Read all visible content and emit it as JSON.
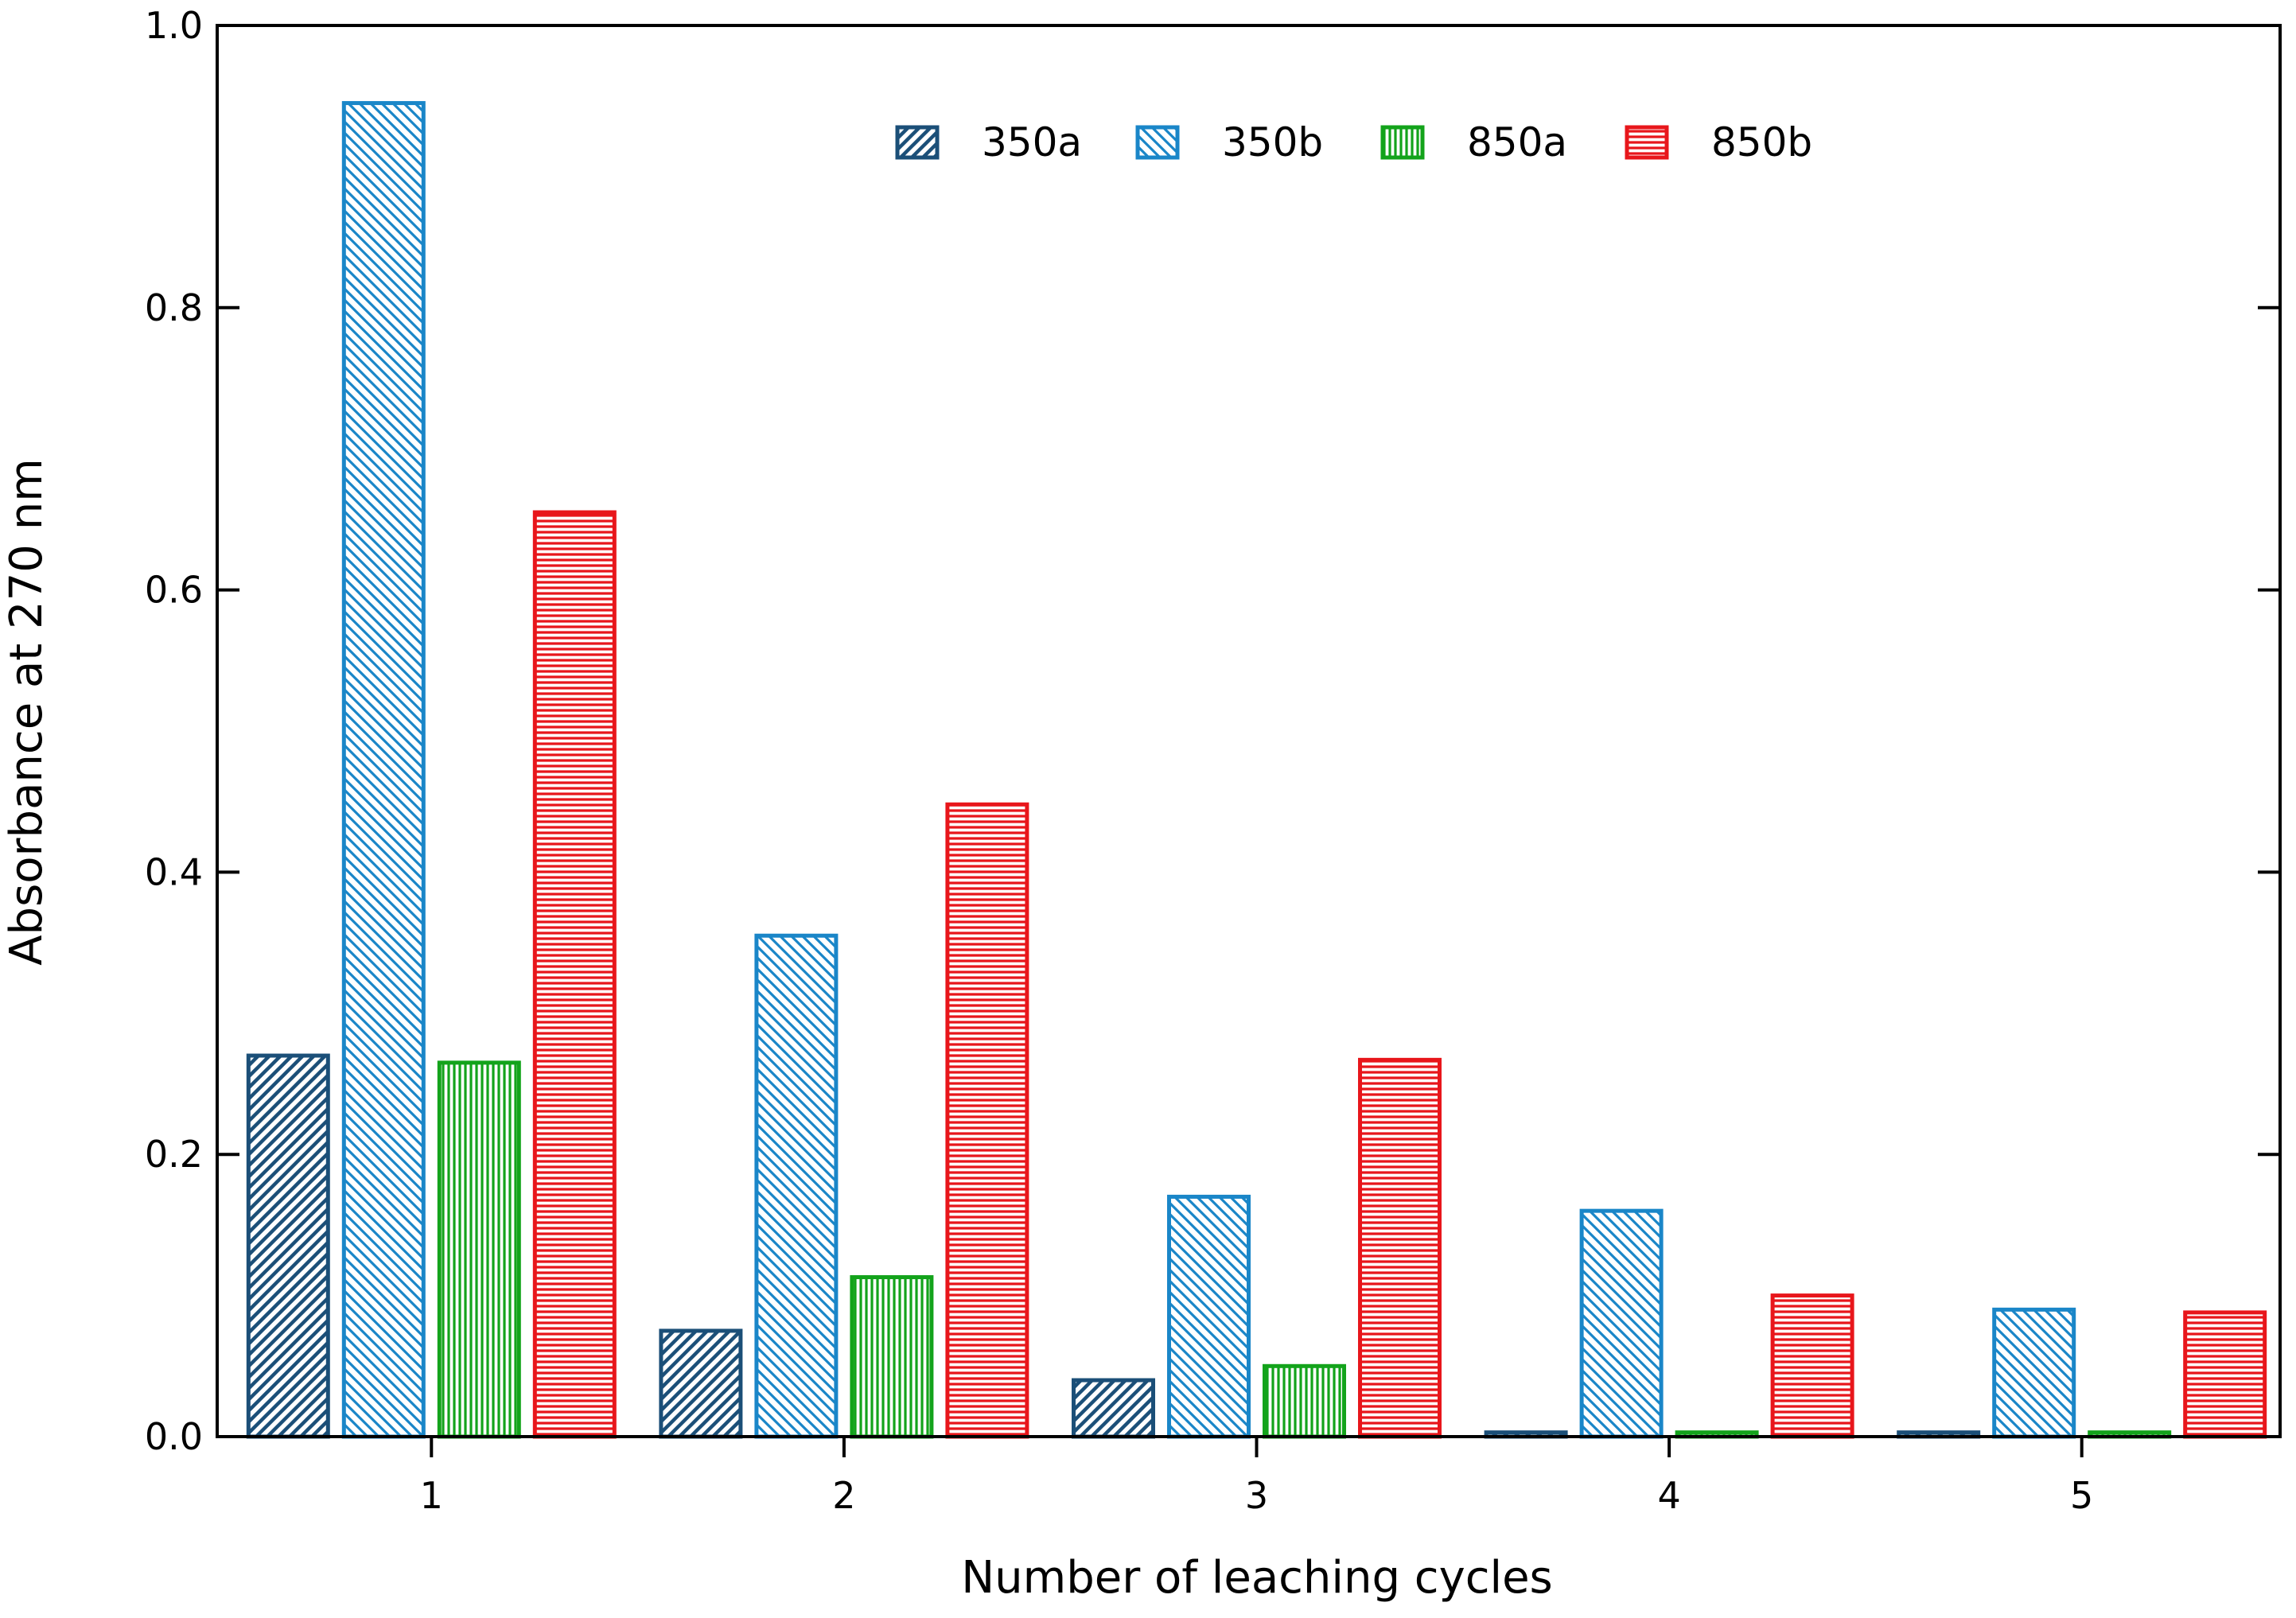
{
  "chart_data": {
    "type": "bar",
    "xlabel": "Number of leaching cycles",
    "ylabel": "Absorbance at 270 nm",
    "ylim": [
      0,
      1.0
    ],
    "yticks": [
      "0.0",
      "0.2",
      "0.4",
      "0.6",
      "0.8",
      "1.0"
    ],
    "categories": [
      "1",
      "2",
      "3",
      "4",
      "5"
    ],
    "legend_position": "top-center",
    "series": [
      {
        "name": "350a",
        "values": [
          0.27,
          0.075,
          0.04,
          0.003,
          0.003
        ],
        "color": "#1b4f78",
        "pattern": "diagonal-up"
      },
      {
        "name": "350b",
        "values": [
          0.945,
          0.355,
          0.17,
          0.16,
          0.09
        ],
        "color": "#1a86c8",
        "pattern": "diagonal-down"
      },
      {
        "name": "850a",
        "values": [
          0.265,
          0.113,
          0.05,
          0.003,
          0.003
        ],
        "color": "#13a31b",
        "pattern": "vertical"
      },
      {
        "name": "850b",
        "values": [
          0.655,
          0.448,
          0.267,
          0.1,
          0.088
        ],
        "color": "#e8161b",
        "pattern": "horizontal"
      }
    ]
  }
}
